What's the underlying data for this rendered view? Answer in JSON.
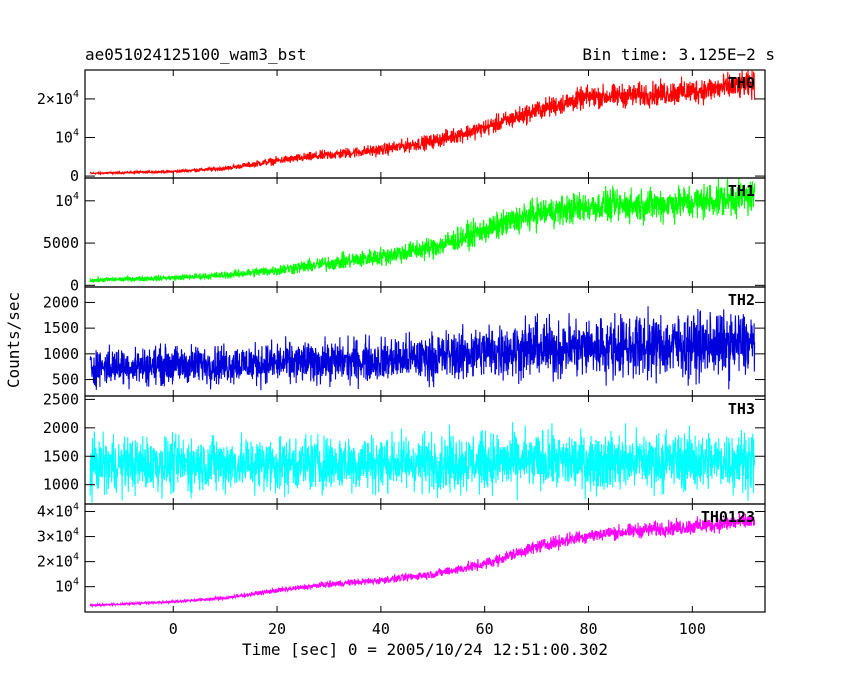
{
  "header": {
    "left": "ae051024125100_wam3_bst",
    "right": "Bin time: 3.125E−2 s"
  },
  "chart_data": {
    "type": "line",
    "title": "ae051024125100_wam3_bst",
    "bin_time_label": "Bin time: 3.125E−2 s",
    "xlabel": "Time [sec] 0 = 2005/10/24 12:51:00.302",
    "ylabel": "Counts/sec",
    "xlim": [
      -17,
      114
    ],
    "x_tick_labels": [
      "0",
      "20",
      "40",
      "60",
      "80",
      "100"
    ],
    "x_data_range": [
      -16,
      112
    ],
    "panels": [
      {
        "name": "TH0",
        "color": "#ff0000",
        "ylim": [
          -500,
          27500
        ],
        "tick_values": [
          0,
          10000,
          20000
        ],
        "tick_labels": [
          [
            "0",
            ""
          ],
          [
            "10",
            "4"
          ],
          [
            "2×10",
            "4"
          ]
        ],
        "trend_x": [
          -16,
          0,
          10,
          20,
          30,
          40,
          50,
          60,
          70,
          80,
          90,
          100,
          110,
          112
        ],
        "trend_y": [
          700,
          1200,
          2000,
          4000,
          5500,
          6800,
          9000,
          12500,
          17000,
          20500,
          21000,
          22000,
          23500,
          23500
        ],
        "noise": [
          200,
          300,
          500,
          900,
          1200,
          1400,
          1700,
          2000,
          2300,
          2600,
          2800,
          3000,
          3200,
          3200
        ]
      },
      {
        "name": "TH1",
        "color": "#00ff00",
        "ylim": [
          -200,
          12700
        ],
        "tick_values": [
          0,
          5000,
          10000
        ],
        "tick_labels": [
          [
            "0",
            ""
          ],
          [
            "5000",
            ""
          ],
          [
            "10",
            "4"
          ]
        ],
        "trend_x": [
          -16,
          0,
          10,
          20,
          30,
          40,
          50,
          60,
          70,
          80,
          90,
          100,
          110,
          112
        ],
        "trend_y": [
          600,
          900,
          1200,
          1800,
          2600,
          3400,
          4500,
          6500,
          8500,
          9300,
          9500,
          9800,
          10500,
          10500
        ],
        "noise": [
          250,
          300,
          400,
          600,
          800,
          1000,
          1200,
          1400,
          1600,
          1700,
          1800,
          1900,
          2000,
          2000
        ]
      },
      {
        "name": "TH2",
        "color": "#0000dd",
        "ylim": [
          180,
          2300
        ],
        "tick_values": [
          500,
          1000,
          1500,
          2000
        ],
        "tick_labels": [
          [
            "500",
            ""
          ],
          [
            "1000",
            ""
          ],
          [
            "1500",
            ""
          ],
          [
            "2000",
            ""
          ]
        ],
        "trend_x": [
          -16,
          0,
          20,
          40,
          50,
          60,
          70,
          80,
          90,
          100,
          112
        ],
        "trend_y": [
          750,
          780,
          820,
          880,
          930,
          1050,
          1100,
          1130,
          1150,
          1170,
          1180
        ],
        "noise": [
          330,
          340,
          360,
          390,
          420,
          480,
          520,
          540,
          560,
          570,
          580
        ]
      },
      {
        "name": "TH3",
        "color": "#00ffff",
        "ylim": [
          660,
          2560
        ],
        "tick_values": [
          1000,
          1500,
          2000,
          2500
        ],
        "tick_labels": [
          [
            "1000",
            ""
          ],
          [
            "1500",
            ""
          ],
          [
            "2000",
            ""
          ],
          [
            "2500",
            ""
          ]
        ],
        "trend_x": [
          -16,
          20,
          60,
          100,
          112
        ],
        "trend_y": [
          1350,
          1370,
          1400,
          1420,
          1430
        ],
        "noise": [
          440,
          450,
          460,
          470,
          480
        ]
      },
      {
        "name": "TH0123",
        "color": "#ff00ff",
        "ylim": [
          -100,
          43000
        ],
        "tick_values": [
          10000,
          20000,
          30000,
          40000
        ],
        "tick_labels": [
          [
            "10",
            "4"
          ],
          [
            "2×10",
            "4"
          ],
          [
            "3×10",
            "4"
          ],
          [
            "4×10",
            "4"
          ]
        ],
        "trend_x": [
          -16,
          0,
          10,
          20,
          30,
          40,
          50,
          60,
          70,
          80,
          90,
          100,
          110,
          112
        ],
        "trend_y": [
          2500,
          4000,
          5500,
          8500,
          11000,
          12500,
          15000,
          19000,
          26000,
          30500,
          32500,
          34000,
          36000,
          36000
        ],
        "noise": [
          300,
          400,
          600,
          900,
          1100,
          1300,
          1500,
          2000,
          2300,
          2500,
          2700,
          2900,
          3000,
          3000
        ]
      }
    ]
  }
}
